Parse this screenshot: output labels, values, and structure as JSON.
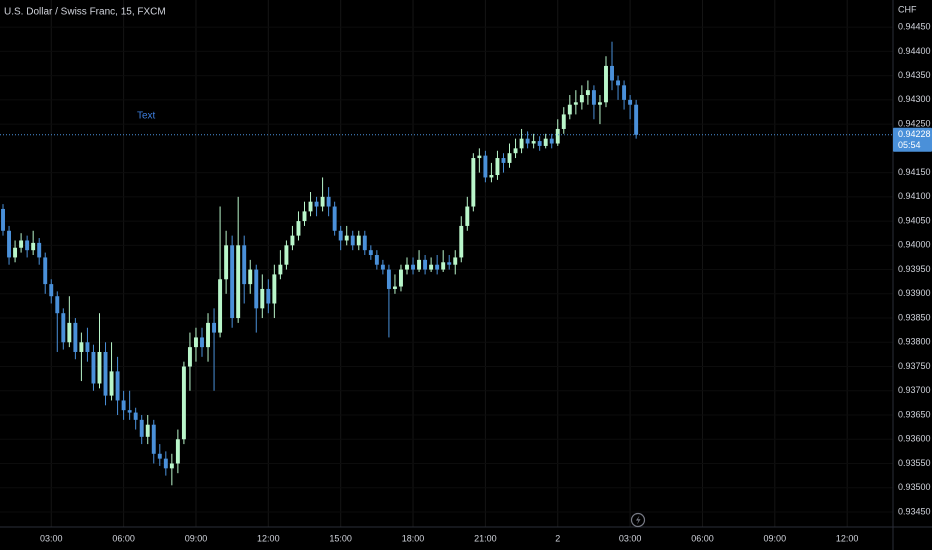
{
  "chart_data": {
    "type": "candlestick",
    "title": "U.S. Dollar / Swiss Franc, 15, FXCM",
    "currency": "CHF",
    "annotation": "Text",
    "last_price": 0.94228,
    "countdown": "05:54",
    "up_color": "#b9f6ca",
    "down_color": "#4a90d9",
    "open": [
      0.94075,
      0.9403,
      0.93975,
      0.93995,
      0.9401,
      0.9399,
      0.94005,
      0.93975,
      0.9392,
      0.93895,
      0.9386,
      0.938,
      0.9384,
      0.9378,
      0.938,
      0.9378,
      0.93715,
      0.9378,
      0.9369,
      0.9374,
      0.9368,
      0.9366,
      0.93655,
      0.9364,
      0.93605,
      0.9363,
      0.9357,
      0.9356,
      0.9354,
      0.9355,
      0.936,
      0.9375,
      0.9379,
      0.9381,
      0.9379,
      0.9384,
      0.9382,
      0.9393,
      0.94,
      0.9385,
      0.94,
      0.9392,
      0.9395,
      0.9387,
      0.9391,
      0.9388,
      0.9394,
      0.9396,
      0.94,
      0.9402,
      0.9405,
      0.9407,
      0.9409,
      0.9408,
      0.941,
      0.9408,
      0.9403,
      0.9401,
      0.9402,
      0.94,
      0.9402,
      0.9399,
      0.9398,
      0.9396,
      0.9395,
      0.9391,
      0.93915,
      0.9395,
      0.9396,
      0.9395,
      0.9397,
      0.9395,
      0.9396,
      0.9395,
      0.93965,
      0.9396,
      0.93975,
      0.9404,
      0.9408,
      0.9418,
      0.94185,
      0.9414,
      0.94145,
      0.9418,
      0.9417,
      0.9419,
      0.942,
      0.9422,
      0.9421,
      0.94215,
      0.94205,
      0.9422,
      0.9421,
      0.9424,
      0.9427,
      0.9429,
      0.94295,
      0.9431,
      0.9432,
      0.9429,
      0.94295,
      0.9437,
      0.9434,
      0.9433,
      0.943,
      0.9429
    ],
    "high": [
      0.94085,
      0.9404,
      0.9401,
      0.94025,
      0.9402,
      0.9403,
      0.94015,
      0.93985,
      0.9393,
      0.93905,
      0.9387,
      0.93895,
      0.9385,
      0.9382,
      0.9383,
      0.93795,
      0.9386,
      0.938,
      0.938,
      0.9377,
      0.937,
      0.937,
      0.93665,
      0.9365,
      0.9365,
      0.9364,
      0.9359,
      0.93575,
      0.9357,
      0.9362,
      0.9376,
      0.9382,
      0.9383,
      0.9383,
      0.9386,
      0.9387,
      0.9408,
      0.9403,
      0.9402,
      0.941,
      0.9402,
      0.9397,
      0.9396,
      0.9394,
      0.9393,
      0.9396,
      0.9399,
      0.9401,
      0.9404,
      0.9407,
      0.9409,
      0.9411,
      0.941,
      0.9414,
      0.9412,
      0.9409,
      0.9404,
      0.9404,
      0.9403,
      0.9403,
      0.9403,
      0.94,
      0.9399,
      0.9397,
      0.9396,
      0.9394,
      0.9396,
      0.93975,
      0.93975,
      0.9399,
      0.9398,
      0.93975,
      0.9398,
      0.9399,
      0.9398,
      0.9399,
      0.9406,
      0.941,
      0.9419,
      0.942,
      0.94195,
      0.9417,
      0.94195,
      0.9419,
      0.9421,
      0.9422,
      0.9424,
      0.94235,
      0.9423,
      0.94225,
      0.9423,
      0.9423,
      0.9426,
      0.94285,
      0.9431,
      0.9432,
      0.9433,
      0.9434,
      0.9433,
      0.9431,
      0.9439,
      0.9442,
      0.9435,
      0.9434,
      0.9431,
      0.943
    ],
    "low": [
      0.9402,
      0.9396,
      0.93965,
      0.93985,
      0.93975,
      0.9398,
      0.9396,
      0.939,
      0.9388,
      0.9378,
      0.93785,
      0.9379,
      0.93765,
      0.9372,
      0.9376,
      0.937,
      0.93705,
      0.9367,
      0.9368,
      0.9365,
      0.9364,
      0.9364,
      0.9362,
      0.9359,
      0.9359,
      0.9355,
      0.93545,
      0.93525,
      0.93505,
      0.9353,
      0.9359,
      0.937,
      0.9376,
      0.9377,
      0.9376,
      0.937,
      0.9381,
      0.939,
      0.9383,
      0.9384,
      0.9388,
      0.939,
      0.9382,
      0.9385,
      0.9386,
      0.9385,
      0.9393,
      0.9395,
      0.9399,
      0.9401,
      0.9404,
      0.9406,
      0.9406,
      0.9407,
      0.9406,
      0.9402,
      0.9399,
      0.94,
      0.9399,
      0.9399,
      0.9398,
      0.9397,
      0.9395,
      0.9394,
      0.9381,
      0.939,
      0.93905,
      0.9394,
      0.9394,
      0.93945,
      0.9394,
      0.93945,
      0.9394,
      0.93945,
      0.9395,
      0.9394,
      0.93965,
      0.9403,
      0.9407,
      0.9415,
      0.9413,
      0.9413,
      0.94135,
      0.9415,
      0.9416,
      0.9418,
      0.9419,
      0.942,
      0.942,
      0.94195,
      0.942,
      0.942,
      0.94205,
      0.9423,
      0.9426,
      0.9427,
      0.9428,
      0.9429,
      0.9426,
      0.9425,
      0.94285,
      0.9432,
      0.943,
      0.9428,
      0.9426,
      0.9422
    ],
    "close": [
      0.9403,
      0.93975,
      0.93995,
      0.9401,
      0.9399,
      0.94005,
      0.93975,
      0.9392,
      0.93895,
      0.9386,
      0.938,
      0.9384,
      0.9378,
      0.938,
      0.9378,
      0.93715,
      0.9378,
      0.9369,
      0.9374,
      0.9368,
      0.9366,
      0.93655,
      0.9364,
      0.93605,
      0.9363,
      0.9357,
      0.9356,
      0.9354,
      0.9355,
      0.936,
      0.9375,
      0.9379,
      0.9381,
      0.9379,
      0.9384,
      0.9382,
      0.9393,
      0.94,
      0.9385,
      0.94,
      0.9392,
      0.9395,
      0.9387,
      0.9391,
      0.9388,
      0.9394,
      0.9396,
      0.94,
      0.9402,
      0.9405,
      0.9407,
      0.9409,
      0.9408,
      0.941,
      0.9408,
      0.9403,
      0.9401,
      0.9402,
      0.94,
      0.9402,
      0.9399,
      0.9398,
      0.9396,
      0.9395,
      0.9391,
      0.93915,
      0.9395,
      0.9396,
      0.9395,
      0.9397,
      0.9395,
      0.9396,
      0.9395,
      0.93965,
      0.9396,
      0.93975,
      0.9404,
      0.9408,
      0.9418,
      0.94185,
      0.9414,
      0.94145,
      0.9418,
      0.9417,
      0.9419,
      0.942,
      0.9422,
      0.9421,
      0.94215,
      0.94205,
      0.9422,
      0.9421,
      0.9424,
      0.9427,
      0.9429,
      0.94295,
      0.9431,
      0.9432,
      0.9429,
      0.94295,
      0.9437,
      0.9434,
      0.9433,
      0.943,
      0.9429,
      0.94228
    ],
    "xlim": [
      -0.5,
      147.6
    ],
    "xticks": [
      {
        "value": 8,
        "label": "03:00"
      },
      {
        "value": 20,
        "label": "06:00"
      },
      {
        "value": 32,
        "label": "09:00"
      },
      {
        "value": 44,
        "label": "12:00"
      },
      {
        "value": 56,
        "label": "15:00"
      },
      {
        "value": 68,
        "label": "18:00"
      },
      {
        "value": 80,
        "label": "21:00"
      },
      {
        "value": 92,
        "label": "2"
      },
      {
        "value": 104,
        "label": "03:00"
      },
      {
        "value": 116,
        "label": "06:00"
      },
      {
        "value": 128,
        "label": "09:00"
      },
      {
        "value": 140,
        "label": "12:00"
      }
    ],
    "ylim": [
      0.93419,
      0.94506
    ],
    "yticks": [
      {
        "value": 0.9345,
        "label": "0.93450"
      },
      {
        "value": 0.935,
        "label": "0.93500"
      },
      {
        "value": 0.9355,
        "label": "0.93550"
      },
      {
        "value": 0.936,
        "label": "0.93600"
      },
      {
        "value": 0.9365,
        "label": "0.93650"
      },
      {
        "value": 0.937,
        "label": "0.93700"
      },
      {
        "value": 0.9375,
        "label": "0.93750"
      },
      {
        "value": 0.938,
        "label": "0.93800"
      },
      {
        "value": 0.9385,
        "label": "0.93850"
      },
      {
        "value": 0.939,
        "label": "0.93900"
      },
      {
        "value": 0.9395,
        "label": "0.93950"
      },
      {
        "value": 0.94,
        "label": "0.94000"
      },
      {
        "value": 0.9405,
        "label": "0.94050"
      },
      {
        "value": 0.941,
        "label": "0.94100"
      },
      {
        "value": 0.9415,
        "label": "0.94150"
      },
      {
        "value": 0.9425,
        "label": "0.94250"
      },
      {
        "value": 0.943,
        "label": "0.94300"
      },
      {
        "value": 0.9435,
        "label": "0.94350"
      },
      {
        "value": 0.944,
        "label": "0.94400"
      },
      {
        "value": 0.9445,
        "label": "0.94450"
      }
    ],
    "grid": true
  }
}
